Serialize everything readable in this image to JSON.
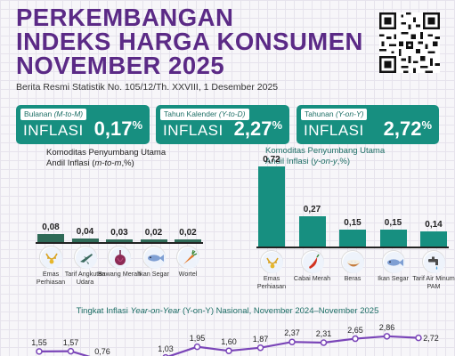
{
  "header": {
    "title_lines": [
      "PERKEMBANGAN",
      "INDEKS HARGA KONSUMEN",
      "NOVEMBER 2025"
    ],
    "subtitle": "Berita Resmi Statistik No. 105/12/Th. XXVIII, 1 Desember 2025",
    "qr_icon": "qr-code-icon"
  },
  "cards": [
    {
      "label_prefix": "Bulanan ",
      "label_italic": "(M-to-M)",
      "title": "INFLASI",
      "value": "0,17",
      "unit": "%"
    },
    {
      "label_prefix": "Tahun Kalender ",
      "label_italic": "(Y-to-D)",
      "title": "INFLASI",
      "value": "2,27",
      "unit": "%"
    },
    {
      "label_prefix": "Tahunan ",
      "label_italic": "(Y-on-Y)",
      "title": "INFLASI",
      "value": "2,72",
      "unit": "%"
    }
  ],
  "mtm": {
    "title_line1": "Komoditas Penyumbang Utama",
    "title_line2": "Andil Inflasi (",
    "title_italic": "m-to-m",
    "title_end": ",%)",
    "items": [
      {
        "value": "0,08",
        "num": 0.08,
        "label": "Emas Perhiasan",
        "icon": "gold-jewelry-icon"
      },
      {
        "value": "0,04",
        "num": 0.04,
        "label": "Tarif Angkutan Udara",
        "icon": "airplane-icon"
      },
      {
        "value": "0,03",
        "num": 0.03,
        "label": "Bawang Merah",
        "icon": "shallot-icon"
      },
      {
        "value": "0,02",
        "num": 0.02,
        "label": "Ikan Segar",
        "icon": "fish-icon"
      },
      {
        "value": "0,02",
        "num": 0.02,
        "label": "Wortel",
        "icon": "carrot-icon"
      }
    ]
  },
  "yoy": {
    "title_line1": "Komoditas Penyumbang Utama",
    "title_line2": "Andil Inflasi (",
    "title_italic": "y-on-y",
    "title_end": ",%)",
    "items": [
      {
        "value": "0,72",
        "num": 0.72,
        "label": "Emas Perhiasan",
        "icon": "gold-jewelry-icon"
      },
      {
        "value": "0,27",
        "num": 0.27,
        "label": "Cabai Merah",
        "icon": "chili-icon"
      },
      {
        "value": "0,15",
        "num": 0.15,
        "label": "Beras",
        "icon": "rice-icon"
      },
      {
        "value": "0,15",
        "num": 0.15,
        "label": "Ikan Segar",
        "icon": "fish-icon"
      },
      {
        "value": "0,14",
        "num": 0.14,
        "label": "Tarif Air Minum PAM",
        "icon": "water-tap-icon"
      }
    ]
  },
  "trend": {
    "title_pre": "Tingkat Inflasi ",
    "title_italic": "Year-on-Year",
    "title_post": " (Y-on-Y) Nasional, November 2024–November 2025",
    "points": [
      {
        "label": "1,55",
        "value": 1.55
      },
      {
        "label": "1,57",
        "value": 1.57
      },
      {
        "label": "0,76",
        "value": 0.76
      },
      {
        "label": "",
        "value": null
      },
      {
        "label": "1,03",
        "value": 1.03
      },
      {
        "label": "1,95",
        "value": 1.95
      },
      {
        "label": "1,60",
        "value": 1.6
      },
      {
        "label": "1,87",
        "value": 1.87
      },
      {
        "label": "2,37",
        "value": 2.37
      },
      {
        "label": "2,31",
        "value": 2.31
      },
      {
        "label": "2,65",
        "value": 2.65
      },
      {
        "label": "2,86",
        "value": 2.86
      },
      {
        "label": "2,72",
        "value": 2.72
      }
    ]
  },
  "colors": {
    "title": "#5b2a86",
    "card": "#178f80",
    "bar_mtm": "#2f6a57",
    "bar_yoy": "#178f80",
    "line": "#7a45b8"
  }
}
